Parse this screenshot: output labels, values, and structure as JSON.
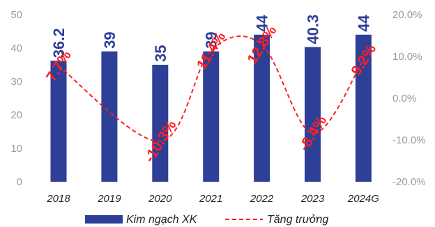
{
  "chart_data": {
    "type": "bar",
    "categories": [
      "2018",
      "2019",
      "2020",
      "2021",
      "2022",
      "2023",
      "2024G"
    ],
    "series": [
      {
        "name": "Kim ngạch XK",
        "type": "bar",
        "axis": "left",
        "values": [
          36.2,
          39,
          35,
          39,
          44,
          40.3,
          44
        ],
        "labels": [
          "36.2",
          "39",
          "35",
          "39",
          "44",
          "40.3",
          "44"
        ],
        "color": "#2e3f98"
      },
      {
        "name": "Tăng trưởng",
        "type": "line",
        "axis": "right",
        "style": "dashed",
        "values": [
          7.7,
          null,
          -10.3,
          11.4,
          12.8,
          -8.4,
          9.2
        ],
        "labels": [
          "7.7%",
          null,
          "-10.3%",
          "11.4%",
          "12.8%",
          "-8.4%",
          "9.2%"
        ],
        "color": "#ff1f1f"
      }
    ],
    "y_left": {
      "ticks": [
        "0",
        "10",
        "20",
        "30",
        "40",
        "50"
      ],
      "lim": [
        0,
        50
      ]
    },
    "y_right": {
      "ticks": [
        "-20.0%",
        "-10.0%",
        "0.0%",
        "10.0%",
        "20.0%"
      ],
      "lim": [
        -20,
        20
      ]
    },
    "legend": {
      "position": "bottom"
    },
    "grid": false
  }
}
